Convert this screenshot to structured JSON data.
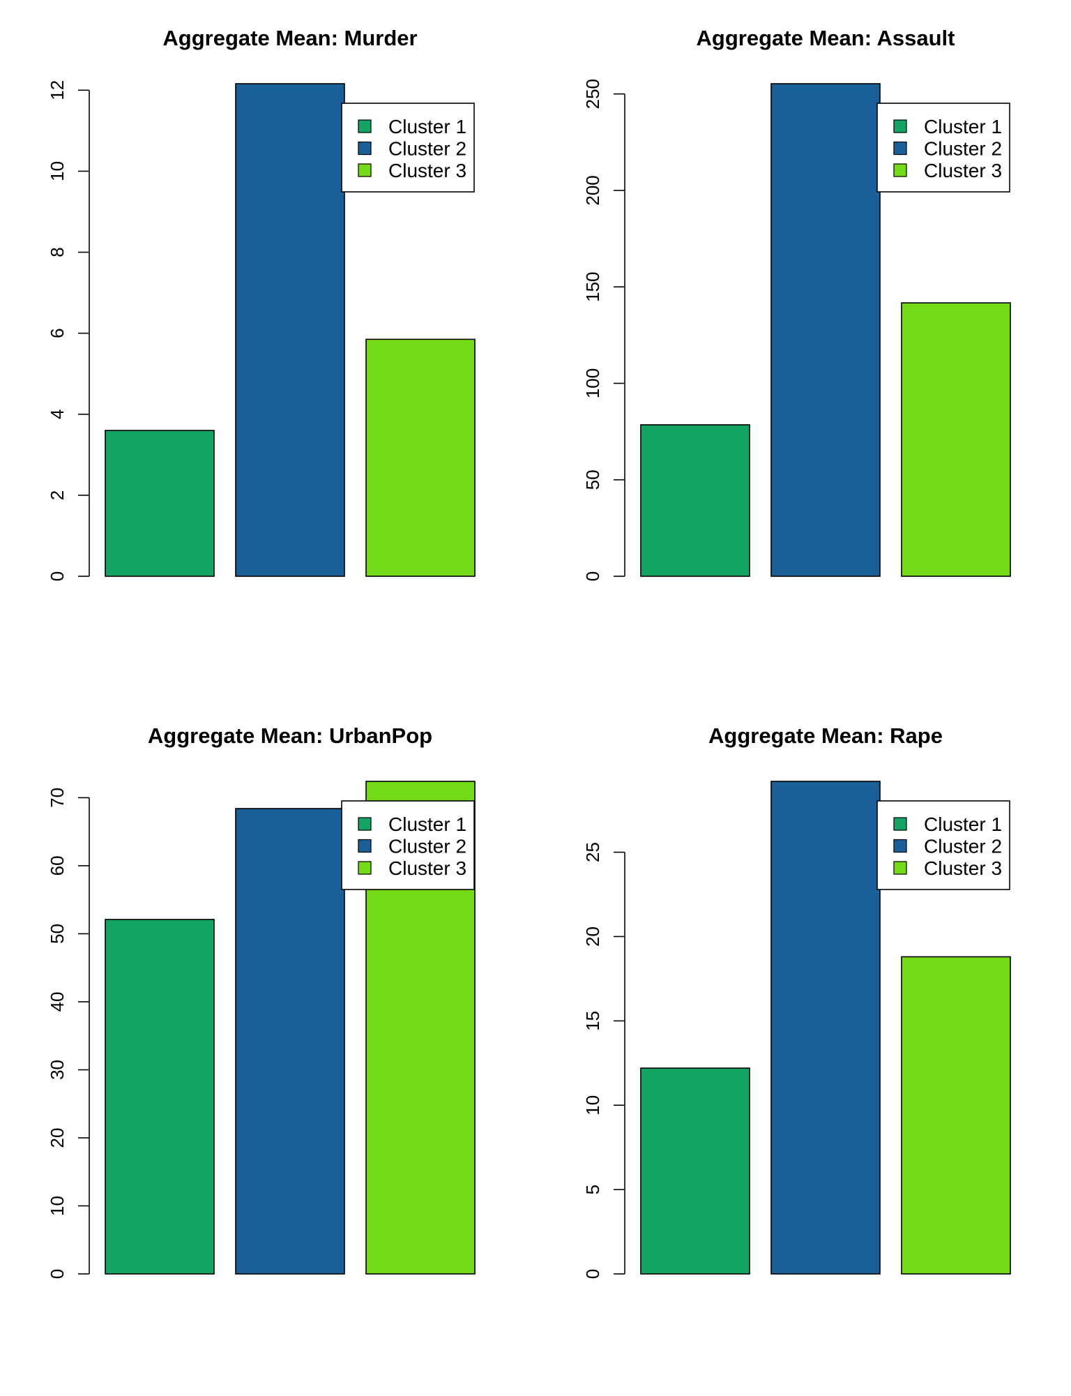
{
  "colors": {
    "cluster1": "#13a463",
    "cluster2": "#1b5f99",
    "cluster3": "#74d916",
    "stroke": "#000000",
    "background": "#ffffff"
  },
  "chart_data": [
    {
      "type": "bar",
      "title": "Aggregate Mean:  Murder",
      "xlabel": "",
      "ylabel": "",
      "categories": [
        "Cluster 1",
        "Cluster 2",
        "Cluster 3"
      ],
      "values": [
        3.6,
        12.16,
        5.85
      ],
      "ylim": [
        0,
        12.16
      ],
      "yticks": [
        0,
        2,
        4,
        6,
        8,
        10,
        12
      ],
      "legend": [
        "Cluster 1",
        "Cluster 2",
        "Cluster 3"
      ],
      "legend_position": "top-right",
      "grid": false
    },
    {
      "type": "bar",
      "title": "Aggregate Mean:  Assault",
      "xlabel": "",
      "ylabel": "",
      "categories": [
        "Cluster 1",
        "Cluster 2",
        "Cluster 3"
      ],
      "values": [
        78.5,
        255.3,
        141.7
      ],
      "ylim": [
        0,
        255.3
      ],
      "yticks": [
        0,
        50,
        100,
        150,
        200,
        250
      ],
      "legend": [
        "Cluster 1",
        "Cluster 2",
        "Cluster 3"
      ],
      "legend_position": "top-right",
      "grid": false
    },
    {
      "type": "bar",
      "title": "Aggregate Mean:  UrbanPop",
      "xlabel": "",
      "ylabel": "",
      "categories": [
        "Cluster 1",
        "Cluster 2",
        "Cluster 3"
      ],
      "values": [
        52.1,
        68.4,
        72.4
      ],
      "ylim": [
        0,
        72.4
      ],
      "yticks": [
        0,
        10,
        20,
        30,
        40,
        50,
        60,
        70
      ],
      "legend": [
        "Cluster 1",
        "Cluster 2",
        "Cluster 3"
      ],
      "legend_position": "top-right",
      "grid": false
    },
    {
      "type": "bar",
      "title": "Aggregate Mean:  Rape",
      "xlabel": "",
      "ylabel": "",
      "categories": [
        "Cluster 1",
        "Cluster 2",
        "Cluster 3"
      ],
      "values": [
        12.2,
        29.2,
        18.8
      ],
      "ylim": [
        0,
        29.2
      ],
      "yticks": [
        0,
        5,
        10,
        15,
        20,
        25
      ],
      "legend": [
        "Cluster 1",
        "Cluster 2",
        "Cluster 3"
      ],
      "legend_position": "top-right",
      "grid": false
    }
  ]
}
